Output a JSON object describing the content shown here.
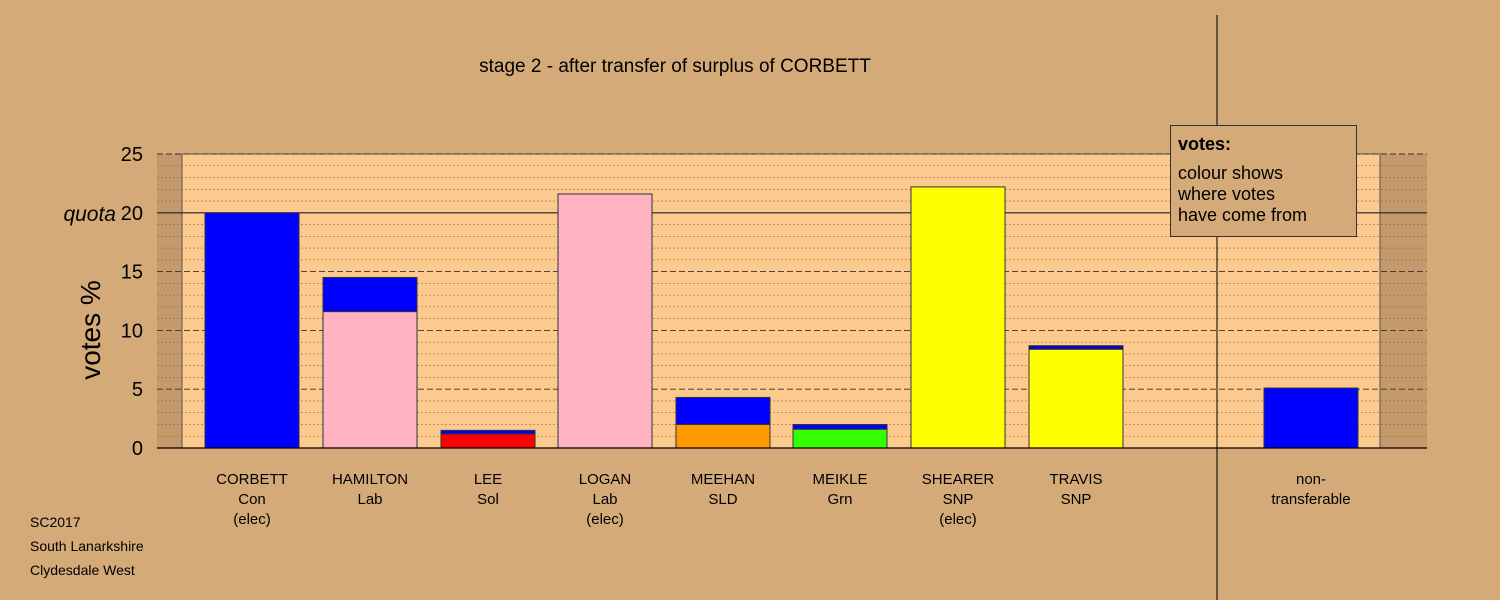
{
  "chart_data": {
    "type": "bar",
    "title": "stage 2 - after transfer of surplus of CORBETT",
    "ylabel": "votes %",
    "ylim": [
      0,
      25
    ],
    "yticks": [
      0,
      5,
      10,
      15,
      20,
      25
    ],
    "quota_label": "quota",
    "quota": 20,
    "grid": true,
    "legend_position": "top-right",
    "categories": [
      {
        "lines": [
          "CORBETT",
          "Con",
          "(elec)"
        ]
      },
      {
        "lines": [
          "HAMILTON",
          "Lab"
        ]
      },
      {
        "lines": [
          "LEE",
          "Sol"
        ]
      },
      {
        "lines": [
          "LOGAN",
          "Lab",
          "(elec)"
        ]
      },
      {
        "lines": [
          "MEEHAN",
          "SLD"
        ]
      },
      {
        "lines": [
          "MEIKLE",
          "Grn"
        ]
      },
      {
        "lines": [
          "SHEARER",
          "SNP",
          "(elec)"
        ]
      },
      {
        "lines": [
          "TRAVIS",
          "SNP"
        ]
      },
      {
        "lines": [
          "non-",
          "transferable"
        ]
      }
    ],
    "bars": [
      {
        "segments": [
          {
            "value": 20.0,
            "color": "#0000ff"
          }
        ]
      },
      {
        "segments": [
          {
            "value": 11.6,
            "color": "#ffb3c1"
          },
          {
            "value": 2.9,
            "color": "#0000ff"
          }
        ]
      },
      {
        "segments": [
          {
            "value": 1.2,
            "color": "#ff0000"
          },
          {
            "value": 0.3,
            "color": "#0000ff"
          }
        ]
      },
      {
        "segments": [
          {
            "value": 21.6,
            "color": "#ffb3c1"
          }
        ]
      },
      {
        "segments": [
          {
            "value": 2.0,
            "color": "#ff9900"
          },
          {
            "value": 2.3,
            "color": "#0000ff"
          }
        ]
      },
      {
        "segments": [
          {
            "value": 1.6,
            "color": "#33ff00"
          },
          {
            "value": 0.4,
            "color": "#0000ff"
          }
        ]
      },
      {
        "segments": [
          {
            "value": 22.2,
            "color": "#ffff00"
          }
        ]
      },
      {
        "segments": [
          {
            "value": 8.4,
            "color": "#ffff00"
          },
          {
            "value": 0.3,
            "color": "#0000cc"
          }
        ]
      },
      {
        "segments": [
          {
            "value": 5.1,
            "color": "#0000ff"
          }
        ]
      }
    ],
    "legend": {
      "title": "votes:",
      "lines": [
        "colour shows",
        "where votes",
        "have come from"
      ]
    }
  },
  "footer": {
    "line1": "SC2017",
    "line2": "South Lanarkshire",
    "line3": "Clydesdale West"
  }
}
